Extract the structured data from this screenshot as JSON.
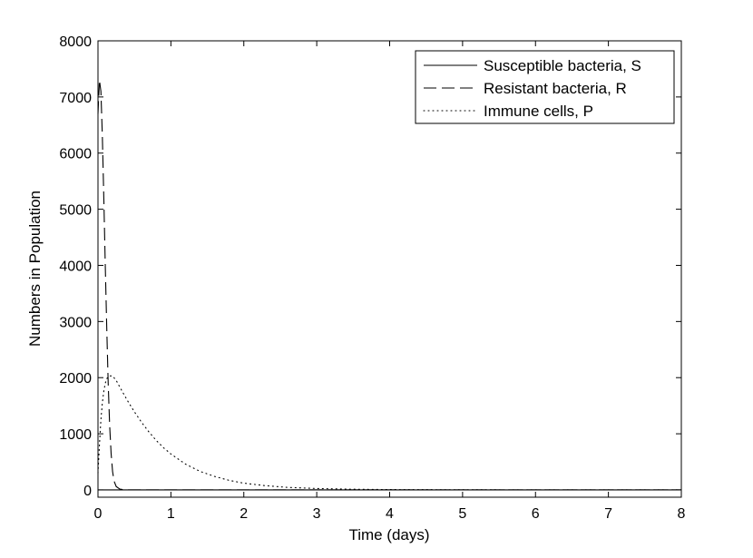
{
  "chart_data": {
    "type": "line",
    "title": "",
    "xlabel": "Time (days)",
    "ylabel": "Numbers in Population",
    "xlim": [
      0,
      8
    ],
    "ylim": [
      -130,
      8000
    ],
    "xticks": [
      0,
      1,
      2,
      3,
      4,
      5,
      6,
      7,
      8
    ],
    "yticks": [
      0,
      1000,
      2000,
      3000,
      4000,
      5000,
      6000,
      7000,
      8000
    ],
    "grid": false,
    "legend_position": "top-right",
    "series": [
      {
        "name": "Susceptible bacteria, S",
        "style": "solid",
        "color": "#000000",
        "x": [
          0,
          1,
          2,
          3,
          4,
          5,
          6,
          7,
          8
        ],
        "y": [
          0,
          0,
          0,
          0,
          0,
          0,
          0,
          0,
          0
        ]
      },
      {
        "name": "Resistant bacteria, R",
        "style": "dashed",
        "color": "#000000",
        "x": [
          0,
          0.02,
          0.04,
          0.06,
          0.08,
          0.1,
          0.12,
          0.14,
          0.16,
          0.18,
          0.2,
          0.22,
          0.25,
          0.3,
          0.35,
          0.4,
          0.5,
          1,
          2,
          3,
          4,
          5,
          6,
          7,
          8
        ],
        "y": [
          6700,
          7300,
          7100,
          6300,
          5200,
          4000,
          2900,
          1900,
          1150,
          650,
          330,
          160,
          60,
          15,
          4,
          1,
          0,
          0,
          0,
          0,
          0,
          0,
          0,
          0,
          0
        ]
      },
      {
        "name": "Immune cells, P",
        "style": "dotted",
        "color": "#000000",
        "x": [
          0,
          0.02,
          0.04,
          0.06,
          0.08,
          0.1,
          0.12,
          0.15,
          0.2,
          0.25,
          0.3,
          0.4,
          0.5,
          0.6,
          0.7,
          0.8,
          0.9,
          1.0,
          1.2,
          1.4,
          1.6,
          1.8,
          2.0,
          2.3,
          2.6,
          3.0,
          3.5,
          4.0,
          5.0,
          6.0,
          7.0,
          8.0
        ],
        "y": [
          300,
          800,
          1250,
          1550,
          1760,
          1900,
          1980,
          2030,
          2030,
          1950,
          1830,
          1600,
          1390,
          1200,
          1030,
          880,
          750,
          640,
          460,
          330,
          240,
          170,
          120,
          75,
          45,
          25,
          12,
          6,
          2,
          1,
          0,
          0
        ]
      }
    ]
  }
}
